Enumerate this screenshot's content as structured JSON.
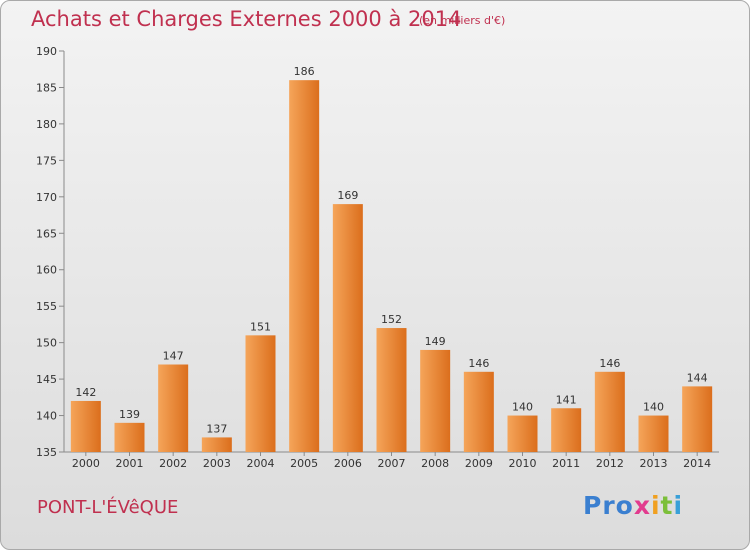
{
  "header": {
    "title": "Achats et Charges Externes 2000 à 2014",
    "subtitle": "(en milliers d'€)"
  },
  "footer": {
    "place": "PONT-L'ÉVêQUE",
    "logo": [
      "Pro",
      "x",
      "i",
      "t",
      "i"
    ]
  },
  "colors": {
    "bar_light": "#f5a55a",
    "bar_dark": "#db6e1c",
    "title": "#c0304f",
    "axis": "#8a8a8a"
  },
  "chart_data": {
    "type": "bar",
    "title": "Achats et Charges Externes 2000 à 2014",
    "subtitle": "(en milliers d'€)",
    "categories": [
      "2000",
      "2001",
      "2002",
      "2003",
      "2004",
      "2005",
      "2006",
      "2007",
      "2008",
      "2009",
      "2010",
      "2011",
      "2012",
      "2013",
      "2014"
    ],
    "values": [
      142,
      139,
      147,
      137,
      151,
      186,
      169,
      152,
      149,
      146,
      140,
      141,
      146,
      140,
      144
    ],
    "ylim": [
      135,
      190
    ],
    "yticks": [
      135,
      140,
      145,
      150,
      155,
      160,
      165,
      170,
      175,
      180,
      185,
      190
    ],
    "grid": false,
    "legend": "none"
  }
}
